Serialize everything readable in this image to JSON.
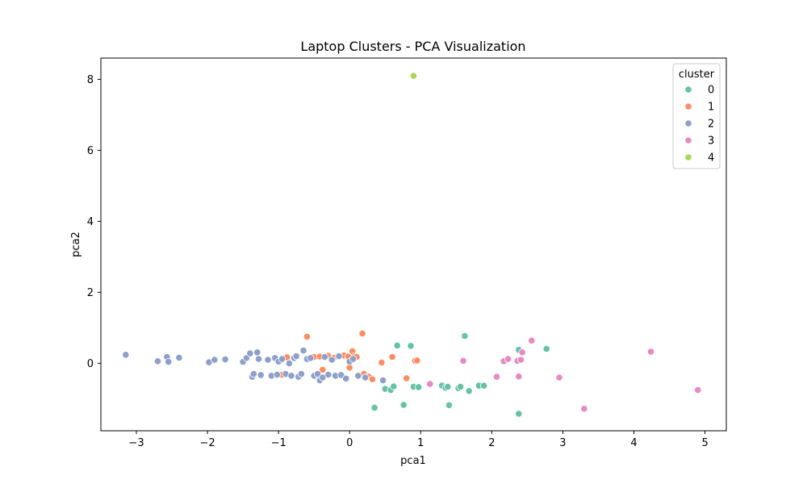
{
  "chart_data": {
    "type": "scatter",
    "title": "Laptop Clusters - PCA Visualization",
    "xlabel": "pca1",
    "ylabel": "pca2",
    "xlim": [
      -3.5,
      5.3
    ],
    "ylim": [
      -1.9,
      8.6
    ],
    "xticks": [
      -3,
      -2,
      -1,
      0,
      1,
      2,
      3,
      4,
      5
    ],
    "yticks": [
      0,
      2,
      4,
      6,
      8
    ],
    "grid": false,
    "legend": {
      "title": "cluster",
      "placement": "top-right"
    },
    "series": [
      {
        "name": "0",
        "color": "#66c2a5",
        "points": [
          [
            0.35,
            -1.25
          ],
          [
            0.5,
            -0.72
          ],
          [
            0.58,
            -0.75
          ],
          [
            0.62,
            -0.65
          ],
          [
            0.67,
            0.5
          ],
          [
            0.76,
            -1.17
          ],
          [
            0.86,
            0.49
          ],
          [
            0.9,
            -0.66
          ],
          [
            0.97,
            -0.67
          ],
          [
            1.3,
            -0.63
          ],
          [
            1.35,
            -0.69
          ],
          [
            1.38,
            -0.66
          ],
          [
            1.4,
            -1.18
          ],
          [
            1.53,
            -0.7
          ],
          [
            1.56,
            -0.66
          ],
          [
            1.62,
            0.77
          ],
          [
            1.68,
            -0.78
          ],
          [
            1.82,
            -0.63
          ],
          [
            1.89,
            -0.63
          ],
          [
            2.38,
            0.38
          ],
          [
            2.38,
            -1.42
          ],
          [
            2.77,
            0.41
          ]
        ]
      },
      {
        "name": "1",
        "color": "#fc8d62",
        "points": [
          [
            -0.95,
            -0.32
          ],
          [
            -0.88,
            0.17
          ],
          [
            -0.6,
            0.75
          ],
          [
            -0.5,
            0.18
          ],
          [
            -0.42,
            0.19
          ],
          [
            -0.38,
            -0.18
          ],
          [
            -0.3,
            0.21
          ],
          [
            -0.22,
            0.16
          ],
          [
            -0.15,
            0.2
          ],
          [
            -0.08,
            0.22
          ],
          [
            -0.02,
            0.19
          ],
          [
            0.0,
            -0.12
          ],
          [
            0.04,
            0.34
          ],
          [
            0.07,
            0.2
          ],
          [
            0.1,
            0.18
          ],
          [
            0.18,
            0.84
          ],
          [
            0.2,
            -0.3
          ],
          [
            0.27,
            -0.38
          ],
          [
            0.32,
            -0.45
          ],
          [
            0.45,
            0.02
          ],
          [
            0.6,
            0.18
          ],
          [
            0.8,
            -0.42
          ],
          [
            0.92,
            0.07
          ],
          [
            0.95,
            0.08
          ]
        ]
      },
      {
        "name": "2",
        "color": "#8da0cb",
        "points": [
          [
            -3.15,
            0.24
          ],
          [
            -2.7,
            0.06
          ],
          [
            -2.57,
            0.18
          ],
          [
            -2.55,
            0.04
          ],
          [
            -2.4,
            0.16
          ],
          [
            -1.98,
            0.03
          ],
          [
            -1.9,
            0.1
          ],
          [
            -1.75,
            0.11
          ],
          [
            -1.5,
            0.04
          ],
          [
            -1.45,
            0.15
          ],
          [
            -1.4,
            0.28
          ],
          [
            -1.37,
            -0.38
          ],
          [
            -1.35,
            -0.3
          ],
          [
            -1.3,
            0.31
          ],
          [
            -1.28,
            0.12
          ],
          [
            -1.25,
            -0.33
          ],
          [
            -1.15,
            0.1
          ],
          [
            -1.1,
            -0.35
          ],
          [
            -1.05,
            0.15
          ],
          [
            -1.02,
            -0.32
          ],
          [
            -1.0,
            0.05
          ],
          [
            -0.95,
            0.12
          ],
          [
            -0.9,
            -0.3
          ],
          [
            -0.85,
            0.0
          ],
          [
            -0.82,
            -0.35
          ],
          [
            -0.78,
            0.15
          ],
          [
            -0.75,
            0.2
          ],
          [
            -0.72,
            -0.38
          ],
          [
            -0.68,
            -0.3
          ],
          [
            -0.65,
            0.36
          ],
          [
            -0.6,
            0.12
          ],
          [
            -0.55,
            0.15
          ],
          [
            -0.5,
            -0.35
          ],
          [
            -0.45,
            -0.3
          ],
          [
            -0.42,
            -0.48
          ],
          [
            -0.38,
            -0.4
          ],
          [
            -0.35,
            0.18
          ],
          [
            -0.3,
            -0.32
          ],
          [
            -0.25,
            0.1
          ],
          [
            -0.2,
            -0.35
          ],
          [
            -0.15,
            0.2
          ],
          [
            -0.12,
            -0.33
          ],
          [
            -0.05,
            -0.43
          ],
          [
            0.0,
            0.05
          ],
          [
            0.05,
            0.12
          ],
          [
            0.12,
            -0.35
          ],
          [
            0.22,
            -0.4
          ],
          [
            0.47,
            -0.48
          ]
        ]
      },
      {
        "name": "3",
        "color": "#e78ac3",
        "points": [
          [
            1.13,
            -0.58
          ],
          [
            1.6,
            0.07
          ],
          [
            2.07,
            -0.38
          ],
          [
            2.17,
            0.06
          ],
          [
            2.23,
            0.12
          ],
          [
            2.36,
            0.07
          ],
          [
            2.38,
            -0.37
          ],
          [
            2.41,
            0.1
          ],
          [
            2.43,
            0.31
          ],
          [
            2.56,
            0.64
          ],
          [
            2.95,
            -0.4
          ],
          [
            3.3,
            -1.28
          ],
          [
            4.24,
            0.33
          ],
          [
            4.9,
            -0.75
          ]
        ]
      },
      {
        "name": "4",
        "color": "#a6d854",
        "points": [
          [
            0.9,
            8.1
          ]
        ]
      }
    ]
  }
}
